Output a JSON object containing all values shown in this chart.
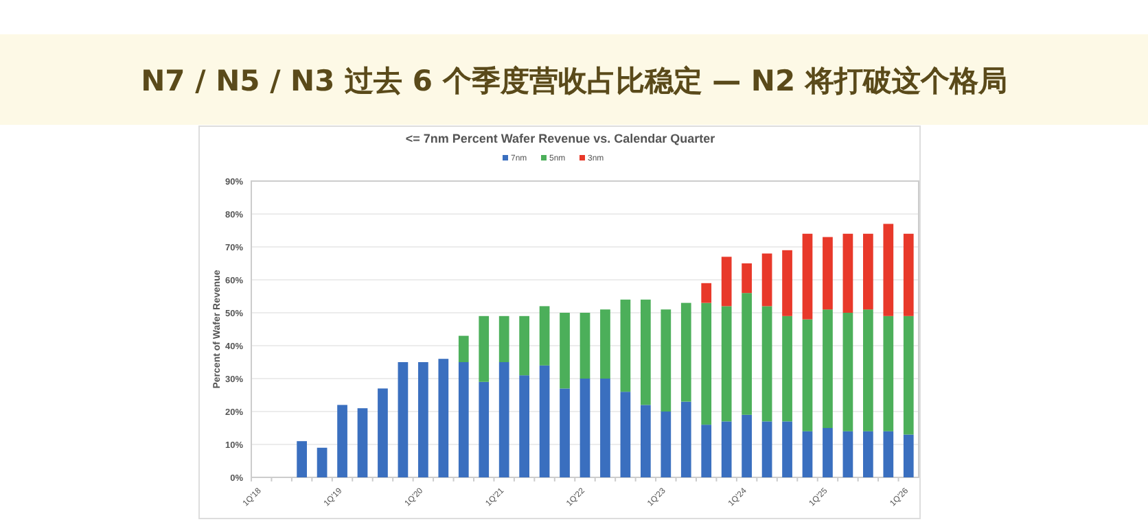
{
  "chart_data": {
    "type": "bar",
    "stacked": true,
    "title": "N7 / N5 / N3 过去 6 个季度营收占比稳定 — N2 将打破这个格局",
    "subtitle": "<= 7nm Percent Wafer Revenue vs. Calendar Quarter",
    "ylabel": "Percent of Wafer Revenue",
    "categories": [
      "1Q'18",
      null,
      null,
      null,
      "1Q'19",
      null,
      null,
      null,
      "1Q'20",
      null,
      null,
      null,
      "1Q'21",
      null,
      null,
      null,
      "1Q'22",
      null,
      null,
      null,
      "1Q'23",
      null,
      null,
      null,
      "1Q'24",
      null,
      null,
      null,
      "1Q'25",
      null,
      null,
      null,
      "1Q'26"
    ],
    "series": [
      {
        "name": "7nm",
        "color": "#3a6fbf",
        "values": [
          null,
          null,
          11,
          9,
          22,
          21,
          27,
          35,
          35,
          36,
          35,
          29,
          35,
          31,
          34,
          27,
          30,
          30,
          26,
          22,
          20,
          23,
          16,
          17,
          19,
          17,
          17,
          14,
          15,
          14,
          14,
          14,
          13
        ]
      },
      {
        "name": "5nm",
        "color": "#4caf5a",
        "values": [
          null,
          null,
          null,
          null,
          null,
          null,
          null,
          null,
          null,
          null,
          8,
          20,
          14,
          18,
          18,
          23,
          20,
          21,
          28,
          32,
          31,
          30,
          37,
          35,
          37,
          35,
          32,
          34,
          36,
          36,
          37,
          35,
          36
        ]
      },
      {
        "name": "3nm",
        "color": "#e8392a",
        "values": [
          null,
          null,
          null,
          null,
          null,
          null,
          null,
          null,
          null,
          null,
          null,
          null,
          null,
          null,
          null,
          null,
          null,
          null,
          null,
          null,
          null,
          null,
          6,
          15,
          9,
          16,
          20,
          26,
          22,
          24,
          23,
          28,
          25
        ]
      }
    ],
    "ylim": [
      0,
      90
    ],
    "yticks": [
      {
        "value": 0,
        "label": "0%"
      },
      {
        "value": 10,
        "label": "10%"
      },
      {
        "value": 20,
        "label": "20%"
      },
      {
        "value": 30,
        "label": "30%"
      },
      {
        "value": 40,
        "label": "40%"
      },
      {
        "value": 50,
        "label": "50%"
      },
      {
        "value": 60,
        "label": "60%"
      },
      {
        "value": 70,
        "label": "70%"
      },
      {
        "value": 80,
        "label": "80%"
      },
      {
        "value": 90,
        "label": "90%"
      }
    ],
    "grid": "y",
    "legend": "top"
  }
}
